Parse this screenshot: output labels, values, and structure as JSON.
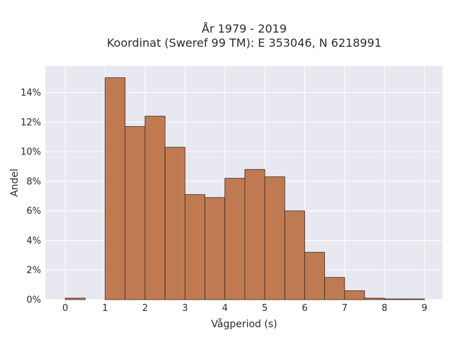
{
  "title_line1": "År 1979 - 2019",
  "title_line2": "Koordinat (Sweref 99 TM): E 353046, N 6218991",
  "colors": {
    "plot_background": "#e8e8f0",
    "grid": "#ffffff",
    "bar_fill": "#c07a52",
    "bar_stroke": "#3b2a20"
  },
  "chart_data": {
    "type": "bar",
    "xlabel": "Vågperiod (s)",
    "ylabel": "Andel",
    "xlim": [
      -0.5,
      9.45
    ],
    "ylim": [
      0,
      0.158
    ],
    "xticks": [
      "0",
      "1",
      "2",
      "3",
      "4",
      "5",
      "6",
      "7",
      "8",
      "9"
    ],
    "yticks": [
      "0%",
      "2%",
      "4%",
      "6%",
      "8%",
      "10%",
      "12%",
      "14%"
    ],
    "grid": true,
    "bin_width": 0.5,
    "bins": [
      {
        "x0": 0.0,
        "value": 0.001
      },
      {
        "x0": 0.5,
        "value": 0.0
      },
      {
        "x0": 1.0,
        "value": 0.15
      },
      {
        "x0": 1.5,
        "value": 0.117
      },
      {
        "x0": 2.0,
        "value": 0.124
      },
      {
        "x0": 2.5,
        "value": 0.103
      },
      {
        "x0": 3.0,
        "value": 0.071
      },
      {
        "x0": 3.5,
        "value": 0.069
      },
      {
        "x0": 4.0,
        "value": 0.082
      },
      {
        "x0": 4.5,
        "value": 0.088
      },
      {
        "x0": 5.0,
        "value": 0.083
      },
      {
        "x0": 5.5,
        "value": 0.06
      },
      {
        "x0": 6.0,
        "value": 0.032
      },
      {
        "x0": 6.5,
        "value": 0.015
      },
      {
        "x0": 7.0,
        "value": 0.006
      },
      {
        "x0": 7.5,
        "value": 0.001
      },
      {
        "x0": 8.0,
        "value": 0.0003
      },
      {
        "x0": 8.5,
        "value": 0.0001
      }
    ]
  }
}
